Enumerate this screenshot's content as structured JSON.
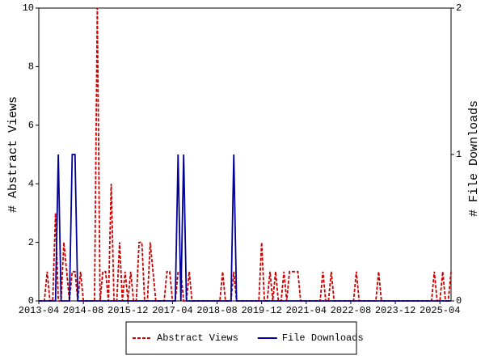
{
  "chart_data": {
    "type": "line",
    "x": [
      "2013-04",
      "2013-05",
      "2013-06",
      "2013-07",
      "2013-08",
      "2013-09",
      "2013-10",
      "2013-11",
      "2013-12",
      "2014-01",
      "2014-02",
      "2014-03",
      "2014-04",
      "2014-05",
      "2014-06",
      "2014-07",
      "2014-08",
      "2014-09",
      "2014-10",
      "2014-11",
      "2014-12",
      "2015-01",
      "2015-02",
      "2015-03",
      "2015-04",
      "2015-05",
      "2015-06",
      "2015-07",
      "2015-08",
      "2015-09",
      "2015-10",
      "2015-11",
      "2015-12",
      "2016-01",
      "2016-02",
      "2016-03",
      "2016-04",
      "2016-05",
      "2016-06",
      "2016-07",
      "2016-08",
      "2016-09",
      "2016-10",
      "2016-11",
      "2016-12",
      "2017-01",
      "2017-02",
      "2017-03",
      "2017-04",
      "2017-05",
      "2017-06",
      "2017-07",
      "2017-08",
      "2017-09",
      "2017-10",
      "2017-11",
      "2017-12",
      "2018-01",
      "2018-02",
      "2018-03",
      "2018-04",
      "2018-05",
      "2018-06",
      "2018-07",
      "2018-08",
      "2018-09",
      "2018-10",
      "2018-11",
      "2018-12",
      "2019-01",
      "2019-02",
      "2019-03",
      "2019-04",
      "2019-05",
      "2019-06",
      "2019-07",
      "2019-08",
      "2019-09",
      "2019-10",
      "2019-11",
      "2019-12",
      "2020-01",
      "2020-02",
      "2020-03",
      "2020-04",
      "2020-05",
      "2020-06",
      "2020-07",
      "2020-08",
      "2020-09",
      "2020-10",
      "2020-11",
      "2020-12",
      "2021-01",
      "2021-02",
      "2021-03",
      "2021-04",
      "2021-05",
      "2021-06",
      "2021-07",
      "2021-08",
      "2021-09",
      "2021-10",
      "2021-11",
      "2021-12",
      "2022-01",
      "2022-02",
      "2022-03",
      "2022-04",
      "2022-05",
      "2022-06",
      "2022-07",
      "2022-08",
      "2022-09",
      "2022-10",
      "2022-11",
      "2022-12",
      "2023-01",
      "2023-02",
      "2023-03",
      "2023-04",
      "2023-05",
      "2023-06",
      "2023-07",
      "2023-08",
      "2023-09",
      "2023-10",
      "2023-11",
      "2023-12",
      "2024-01",
      "2024-02",
      "2024-03",
      "2024-04",
      "2024-05",
      "2024-06",
      "2024-07",
      "2024-08",
      "2024-09",
      "2024-10",
      "2024-11",
      "2024-12",
      "2025-01",
      "2025-02",
      "2025-03",
      "2025-04",
      "2025-05",
      "2025-06",
      "2025-07",
      "2025-08"
    ],
    "xlim": [
      "2013-04",
      "2025-08"
    ],
    "xticks": [
      "2013-04",
      "2014-08",
      "2015-12",
      "2017-04",
      "2018-08",
      "2019-12",
      "2021-04",
      "2022-08",
      "2023-12",
      "2025-04"
    ],
    "ylabel": "# Abstract Views",
    "ylim": [
      0,
      10
    ],
    "yticks": [
      0,
      2,
      4,
      6,
      8,
      10
    ],
    "y2label": "# File Downloads",
    "y2lim": [
      0,
      2
    ],
    "y2ticks": [
      0,
      1,
      2
    ],
    "legend": "bottom",
    "series": [
      {
        "name": "Abstract Views",
        "color": "#cc0000",
        "style": "dashed",
        "values": [
          0,
          0,
          0,
          1,
          0,
          0,
          3,
          0,
          0,
          2,
          1,
          0,
          1,
          1,
          0,
          1,
          0,
          0,
          0,
          0,
          0,
          10,
          0,
          1,
          1,
          0,
          4,
          0,
          0,
          2,
          0,
          1,
          0,
          1,
          0,
          0,
          2,
          2,
          0,
          0,
          2,
          1,
          0,
          0,
          0,
          0,
          1,
          1,
          0,
          0,
          1,
          1,
          0,
          0,
          1,
          0,
          0,
          0,
          0,
          0,
          0,
          0,
          0,
          0,
          0,
          0,
          1,
          0,
          0,
          0,
          1,
          0,
          0,
          0,
          0,
          0,
          0,
          0,
          0,
          0,
          2,
          0,
          0,
          1,
          0,
          1,
          0,
          0,
          1,
          0,
          1,
          1,
          1,
          1,
          0,
          0,
          0,
          0,
          0,
          0,
          0,
          0,
          1,
          0,
          0,
          1,
          0,
          0,
          0,
          0,
          0,
          0,
          0,
          0,
          1,
          0,
          0,
          0,
          0,
          0,
          0,
          0,
          1,
          0,
          0,
          0,
          0,
          0,
          0,
          0,
          0,
          0,
          0,
          0,
          0,
          0,
          0,
          0,
          0,
          0,
          0,
          0,
          1,
          0,
          0,
          1,
          0,
          0,
          1
        ]
      },
      {
        "name": "File Downloads",
        "color": "#000099",
        "style": "solid",
        "axis": "y2",
        "values": [
          0,
          0,
          0,
          0,
          0,
          0,
          0,
          1,
          0,
          0,
          0,
          0,
          1,
          1,
          0,
          0,
          0,
          0,
          0,
          0,
          0,
          0,
          0,
          0,
          0,
          0,
          0,
          0,
          0,
          0,
          0,
          0,
          0,
          0,
          0,
          0,
          0,
          0,
          0,
          0,
          0,
          0,
          0,
          0,
          0,
          0,
          0,
          0,
          0,
          0,
          1,
          0,
          1,
          0,
          0,
          0,
          0,
          0,
          0,
          0,
          0,
          0,
          0,
          0,
          0,
          0,
          0,
          0,
          0,
          0,
          1,
          0,
          0,
          0,
          0,
          0,
          0,
          0,
          0,
          0,
          0,
          0,
          0,
          0,
          0,
          0,
          0,
          0,
          0,
          0,
          0,
          0,
          0,
          0,
          0,
          0,
          0,
          0,
          0,
          0,
          0,
          0,
          0,
          0,
          0,
          0,
          0,
          0,
          0,
          0,
          0,
          0,
          0,
          0,
          0,
          0,
          0,
          0,
          0,
          0,
          0,
          0,
          0,
          0,
          0,
          0,
          0,
          0,
          0,
          0,
          0,
          0,
          0,
          0,
          0,
          0,
          0,
          0,
          0,
          0,
          0,
          0,
          0,
          0,
          0,
          0,
          0,
          0,
          0
        ]
      }
    ]
  }
}
